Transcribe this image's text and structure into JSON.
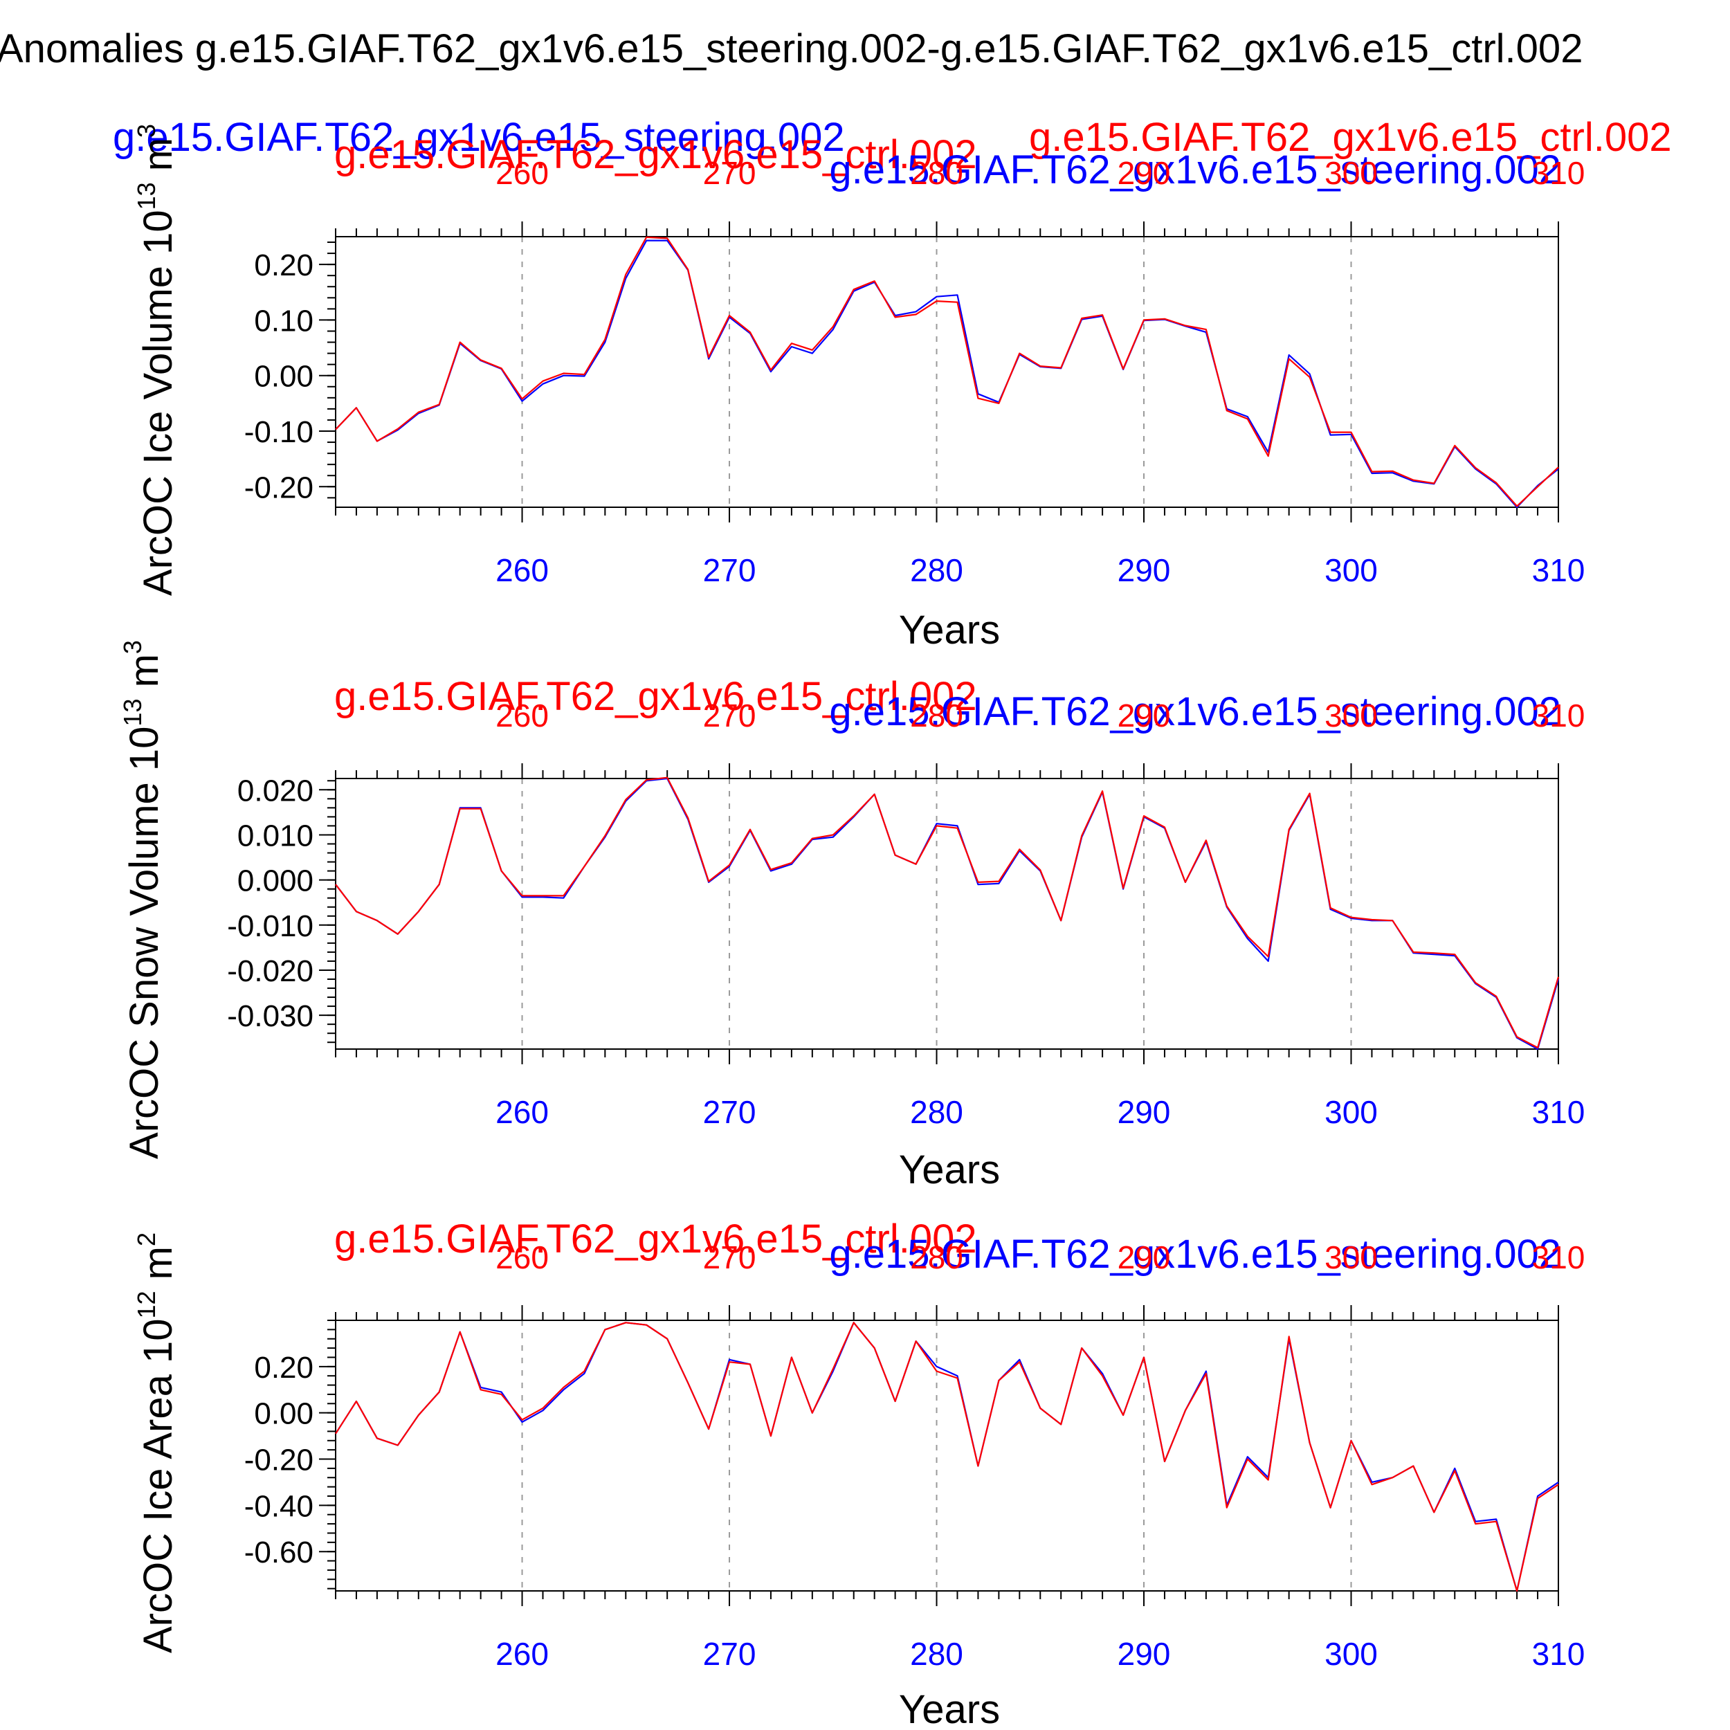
{
  "figure": {
    "main_title": "Anomalies g.e15.GIAF.T62_gx1v6.e15_steering.002-g.e15.GIAF.T62_gx1v6.e15_ctrl.002",
    "top_left_label": "g.e15.GIAF.T62_gx1v6.e15_steering.002",
    "top_right_label": "g.e15.GIAF.T62_gx1v6.e15_ctrl.002"
  },
  "colors": {
    "steering": "#0000ff",
    "ctrl": "#ff0000",
    "axis": "#000000",
    "grid": "#9a9a9a"
  },
  "chart_data": [
    {
      "type": "line",
      "id": "ice-volume",
      "ylabel": "ArcOC Ice Volume 10",
      "yunit_exp": "13",
      "yunit": "m",
      "yunit_pow": "3",
      "xlabel": "Years",
      "title_ctrl": "g.e15.GIAF.T62_gx1v6.e15_ctrl.002",
      "title_steering": "g.e15.GIAF.T62_gx1v6.e15_steering.002",
      "xlim": [
        251,
        310
      ],
      "ylim": [
        -0.237,
        0.25
      ],
      "xticks": [
        260,
        270,
        280,
        290,
        300,
        310
      ],
      "xtick_labels": [
        "260",
        "270",
        "280",
        "290",
        "300",
        "310"
      ],
      "yticks": [
        0.2,
        0.1,
        0.0,
        -0.1,
        -0.2
      ],
      "ytick_labels": [
        "0.20",
        "0.10",
        "0.00",
        "-0.10",
        "-0.20"
      ],
      "yminor_step": 0.02,
      "x": [
        251,
        252,
        253,
        254,
        255,
        256,
        257,
        258,
        259,
        260,
        261,
        262,
        263,
        264,
        265,
        266,
        267,
        268,
        269,
        270,
        271,
        272,
        273,
        274,
        275,
        276,
        277,
        278,
        279,
        280,
        281,
        282,
        283,
        284,
        285,
        286,
        287,
        288,
        289,
        290,
        291,
        292,
        293,
        294,
        295,
        296,
        297,
        298,
        299,
        300,
        301,
        302,
        303,
        304,
        305,
        306,
        307,
        308,
        309,
        310
      ],
      "series": [
        {
          "name": "g.e15.GIAF.T62_gx1v6.e15_steering.002",
          "color": "#0000ff",
          "values": [
            -0.097,
            -0.058,
            -0.118,
            -0.098,
            -0.068,
            -0.053,
            0.058,
            0.027,
            0.012,
            -0.046,
            -0.015,
            0.0,
            -0.001,
            0.06,
            0.175,
            0.243,
            0.243,
            0.19,
            0.03,
            0.105,
            0.076,
            0.007,
            0.052,
            0.04,
            0.083,
            0.152,
            0.168,
            0.108,
            0.115,
            0.142,
            0.145,
            -0.033,
            -0.048,
            0.038,
            0.016,
            0.013,
            0.101,
            0.107,
            0.011,
            0.099,
            0.101,
            0.089,
            0.078,
            -0.06,
            -0.074,
            -0.138,
            0.037,
            0.003,
            -0.107,
            -0.106,
            -0.176,
            -0.175,
            -0.19,
            -0.195,
            -0.128,
            -0.168,
            -0.195,
            -0.237,
            -0.198,
            -0.168
          ]
        },
        {
          "name": "g.e15.GIAF.T62_gx1v6.e15_ctrl.002",
          "color": "#ff0000",
          "values": [
            -0.097,
            -0.058,
            -0.118,
            -0.096,
            -0.066,
            -0.052,
            0.06,
            0.028,
            0.013,
            -0.042,
            -0.01,
            0.004,
            0.002,
            0.065,
            0.182,
            0.249,
            0.247,
            0.191,
            0.033,
            0.108,
            0.078,
            0.01,
            0.058,
            0.046,
            0.088,
            0.155,
            0.17,
            0.105,
            0.11,
            0.134,
            0.132,
            -0.041,
            -0.05,
            0.04,
            0.017,
            0.014,
            0.103,
            0.109,
            0.012,
            0.1,
            0.102,
            0.09,
            0.083,
            -0.063,
            -0.078,
            -0.145,
            0.03,
            -0.003,
            -0.102,
            -0.102,
            -0.173,
            -0.172,
            -0.188,
            -0.194,
            -0.126,
            -0.166,
            -0.193,
            -0.235,
            -0.2,
            -0.165
          ]
        }
      ]
    },
    {
      "type": "line",
      "id": "snow-volume",
      "ylabel": "ArcOC Snow Volume 10",
      "yunit_exp": "13",
      "yunit": "m",
      "yunit_pow": "3",
      "xlabel": "Years",
      "title_ctrl": "g.e15.GIAF.T62_gx1v6.e15_ctrl.002",
      "title_steering": "g.e15.GIAF.T62_gx1v6.e15_steering.002",
      "xlim": [
        251,
        310
      ],
      "ylim": [
        -0.0375,
        0.0225
      ],
      "xticks": [
        260,
        270,
        280,
        290,
        300,
        310
      ],
      "xtick_labels": [
        "260",
        "270",
        "280",
        "290",
        "300",
        "310"
      ],
      "yticks": [
        0.02,
        0.01,
        0.0,
        -0.01,
        -0.02,
        -0.03
      ],
      "ytick_labels": [
        "0.020",
        "0.010",
        "0.000",
        "-0.010",
        "-0.020",
        "-0.030"
      ],
      "yminor_step": 0.002,
      "x": [
        251,
        252,
        253,
        254,
        255,
        256,
        257,
        258,
        259,
        260,
        261,
        262,
        263,
        264,
        265,
        266,
        267,
        268,
        269,
        270,
        271,
        272,
        273,
        274,
        275,
        276,
        277,
        278,
        279,
        280,
        281,
        282,
        283,
        284,
        285,
        286,
        287,
        288,
        289,
        290,
        291,
        292,
        293,
        294,
        295,
        296,
        297,
        298,
        299,
        300,
        301,
        302,
        303,
        304,
        305,
        306,
        307,
        308,
        309,
        310
      ],
      "series": [
        {
          "name": "g.e15.GIAF.T62_gx1v6.e15_steering.002",
          "color": "#0000ff",
          "values": [
            -0.001,
            -0.007,
            -0.009,
            -0.012,
            -0.007,
            -0.001,
            0.016,
            0.016,
            0.002,
            -0.0038,
            -0.0038,
            -0.004,
            0.003,
            0.0095,
            0.0175,
            0.022,
            0.0225,
            0.0135,
            -0.0005,
            0.003,
            0.011,
            0.002,
            0.0035,
            0.009,
            0.0095,
            0.014,
            0.019,
            0.0055,
            0.0035,
            0.0125,
            0.012,
            -0.001,
            -0.0008,
            0.0065,
            0.002,
            -0.009,
            0.0095,
            0.0195,
            -0.002,
            0.014,
            0.0115,
            -0.0005,
            0.0085,
            -0.006,
            -0.013,
            -0.018,
            0.011,
            0.019,
            -0.0065,
            -0.0085,
            -0.009,
            -0.009,
            -0.0162,
            -0.0165,
            -0.0168,
            -0.023,
            -0.026,
            -0.035,
            -0.0375,
            -0.022
          ]
        },
        {
          "name": "g.e15.GIAF.T62_gx1v6.e15_ctrl.002",
          "color": "#ff0000",
          "values": [
            -0.001,
            -0.007,
            -0.009,
            -0.012,
            -0.007,
            -0.001,
            0.0158,
            0.0158,
            0.002,
            -0.0035,
            -0.0035,
            -0.0035,
            0.003,
            0.0098,
            0.0178,
            0.0222,
            0.0227,
            0.0138,
            -0.0003,
            0.0033,
            0.0112,
            0.0023,
            0.0038,
            0.0092,
            0.01,
            0.0142,
            0.019,
            0.0055,
            0.0035,
            0.012,
            0.0115,
            -0.0005,
            -0.0003,
            0.0068,
            0.0022,
            -0.009,
            0.0098,
            0.0197,
            -0.0018,
            0.0142,
            0.0117,
            -0.0005,
            0.0088,
            -0.0058,
            -0.0125,
            -0.017,
            0.0112,
            0.0192,
            -0.0062,
            -0.0083,
            -0.0088,
            -0.009,
            -0.016,
            -0.0162,
            -0.0165,
            -0.0228,
            -0.0258,
            -0.0348,
            -0.0372,
            -0.0215
          ]
        }
      ]
    },
    {
      "type": "line",
      "id": "ice-area",
      "ylabel": "ArcOC Ice Area 10",
      "yunit_exp": "12",
      "yunit": "m",
      "yunit_pow": "2",
      "xlabel": "Years",
      "title_ctrl": "g.e15.GIAF.T62_gx1v6.e15_ctrl.002",
      "title_steering": "g.e15.GIAF.T62_gx1v6.e15_steering.002",
      "xlim": [
        251,
        310
      ],
      "ylim": [
        -0.77,
        0.4
      ],
      "xticks": [
        260,
        270,
        280,
        290,
        300,
        310
      ],
      "xtick_labels": [
        "260",
        "270",
        "280",
        "290",
        "300",
        "310"
      ],
      "yticks": [
        0.2,
        0.0,
        -0.2,
        -0.4,
        -0.6
      ],
      "ytick_labels": [
        "0.20",
        "0.00",
        "-0.20",
        "-0.40",
        "-0.60"
      ],
      "yminor_step": 0.04,
      "x": [
        251,
        252,
        253,
        254,
        255,
        256,
        257,
        258,
        259,
        260,
        261,
        262,
        263,
        264,
        265,
        266,
        267,
        268,
        269,
        270,
        271,
        272,
        273,
        274,
        275,
        276,
        277,
        278,
        279,
        280,
        281,
        282,
        283,
        284,
        285,
        286,
        287,
        288,
        289,
        290,
        291,
        292,
        293,
        294,
        295,
        296,
        297,
        298,
        299,
        300,
        301,
        302,
        303,
        304,
        305,
        306,
        307,
        308,
        309,
        310
      ],
      "series": [
        {
          "name": "g.e15.GIAF.T62_gx1v6.e15_steering.002",
          "color": "#0000ff",
          "values": [
            -0.09,
            0.05,
            -0.11,
            -0.14,
            -0.01,
            0.09,
            0.35,
            0.11,
            0.09,
            -0.04,
            0.01,
            0.1,
            0.17,
            0.36,
            0.39,
            0.38,
            0.32,
            0.13,
            -0.07,
            0.23,
            0.21,
            -0.1,
            0.24,
            0.0,
            0.18,
            0.39,
            0.28,
            0.05,
            0.31,
            0.2,
            0.16,
            -0.23,
            0.14,
            0.23,
            0.02,
            -0.05,
            0.28,
            0.17,
            -0.01,
            0.24,
            -0.21,
            0.01,
            0.18,
            -0.4,
            -0.19,
            -0.28,
            0.32,
            -0.13,
            -0.41,
            -0.12,
            -0.3,
            -0.28,
            -0.23,
            -0.43,
            -0.24,
            -0.47,
            -0.46,
            -0.77,
            -0.36,
            -0.3
          ]
        },
        {
          "name": "g.e15.GIAF.T62_gx1v6.e15_ctrl.002",
          "color": "#ff0000",
          "values": [
            -0.09,
            0.05,
            -0.11,
            -0.14,
            -0.01,
            0.09,
            0.35,
            0.1,
            0.08,
            -0.03,
            0.02,
            0.11,
            0.18,
            0.36,
            0.39,
            0.38,
            0.32,
            0.13,
            -0.07,
            0.22,
            0.21,
            -0.1,
            0.24,
            0.0,
            0.19,
            0.39,
            0.28,
            0.05,
            0.31,
            0.18,
            0.15,
            -0.23,
            0.14,
            0.22,
            0.02,
            -0.05,
            0.28,
            0.16,
            -0.01,
            0.24,
            -0.21,
            0.01,
            0.17,
            -0.41,
            -0.2,
            -0.29,
            0.33,
            -0.13,
            -0.41,
            -0.12,
            -0.31,
            -0.28,
            -0.23,
            -0.43,
            -0.25,
            -0.48,
            -0.47,
            -0.77,
            -0.37,
            -0.31
          ]
        }
      ]
    }
  ]
}
